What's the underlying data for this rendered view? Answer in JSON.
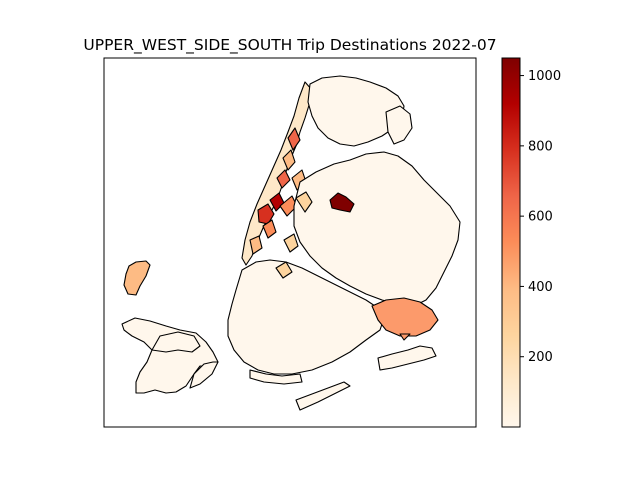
{
  "chart_data": {
    "type": "heatmap",
    "title": "UPPER_WEST_SIDE_SOUTH Trip Destinations 2022-07",
    "colorbar": {
      "colormap": "OrRd",
      "range": [
        0,
        1050
      ],
      "ticks": [
        200,
        400,
        600,
        800,
        1000
      ],
      "tick_labels": [
        "200",
        "400",
        "600",
        "800",
        "1000"
      ],
      "color_low": "#fff7ec",
      "color_high": "#7f0000"
    }
  }
}
